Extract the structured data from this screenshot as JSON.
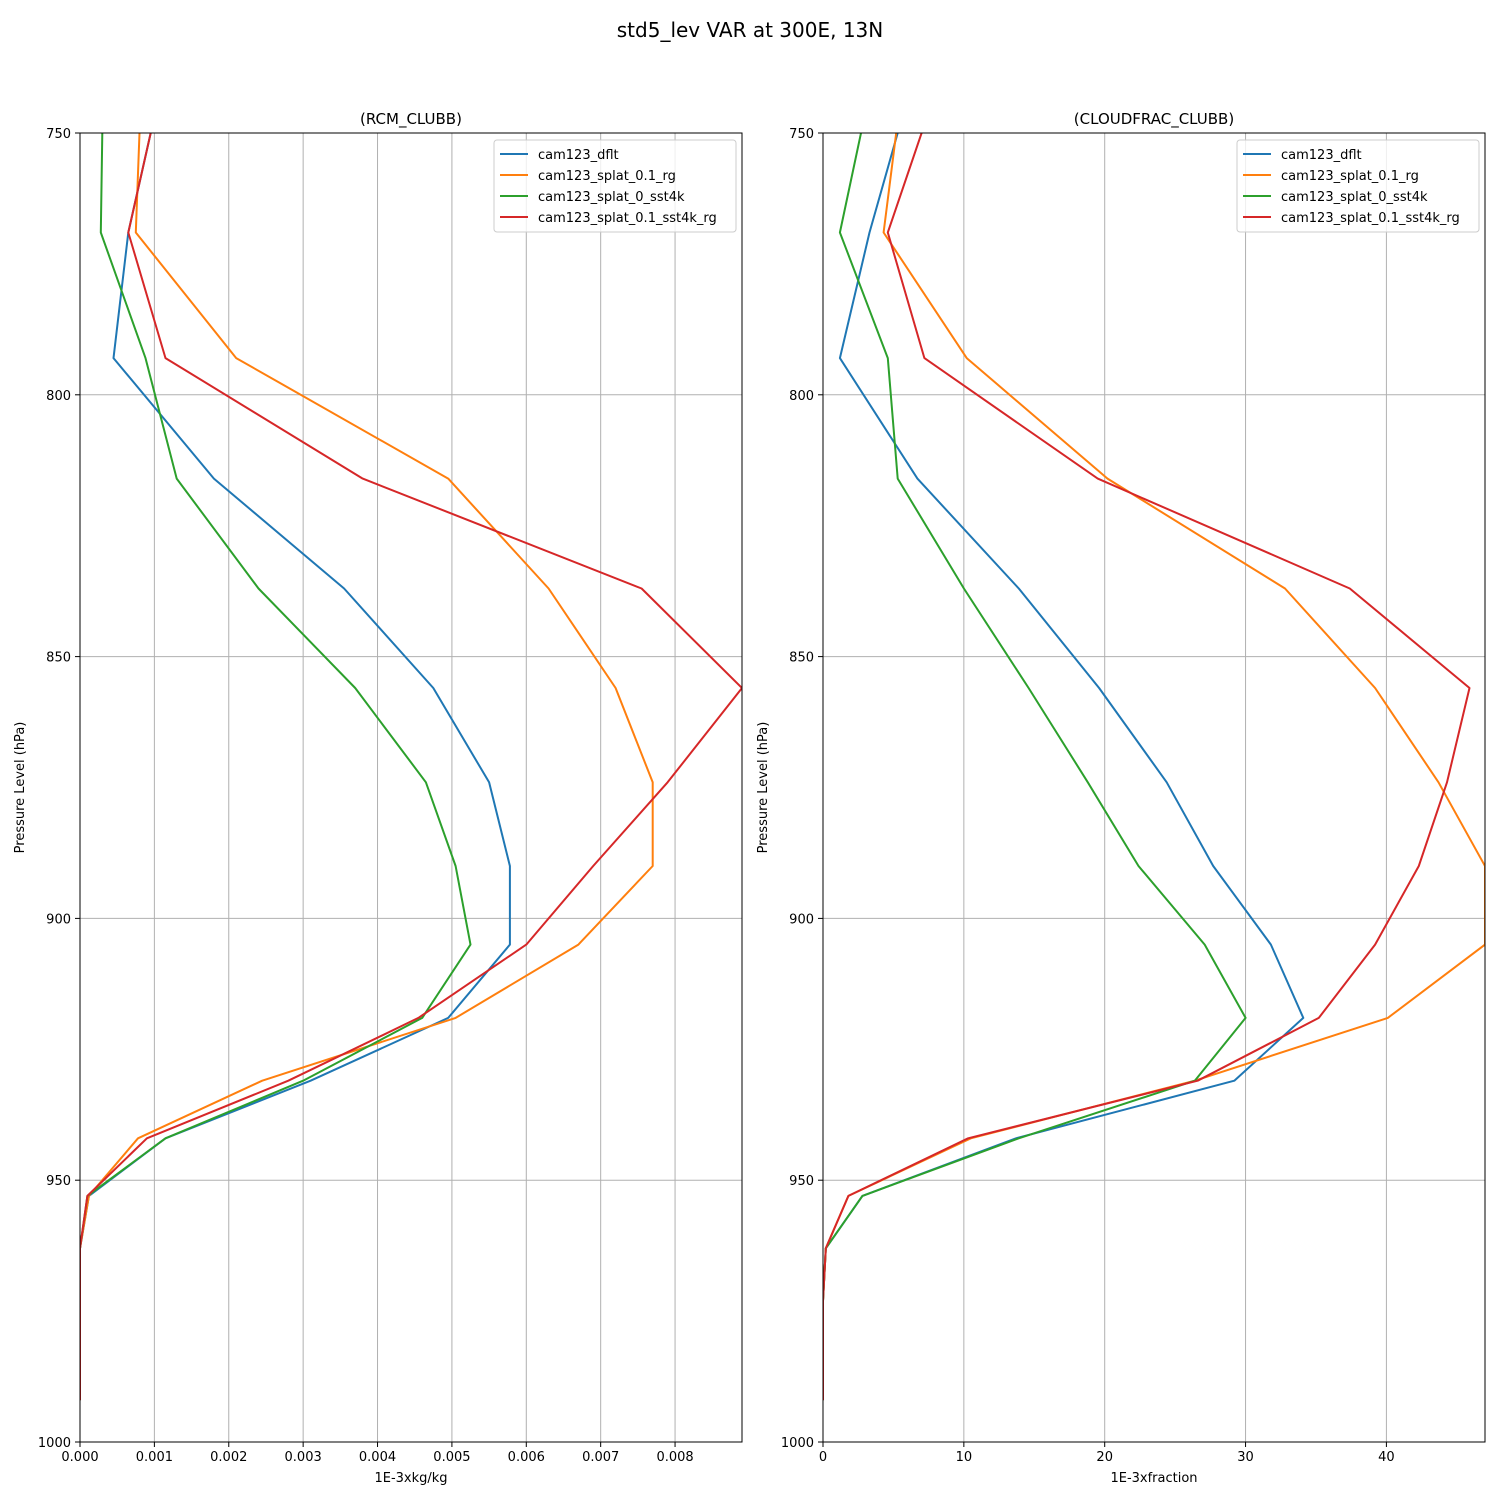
{
  "figure": {
    "title": "std5_lev VAR at 300E, 13N"
  },
  "colors": {
    "cam123_dflt": "#1f77b4",
    "cam123_splat_0.1_rg": "#ff7f0e",
    "cam123_splat_0_sst4k": "#2ca02c",
    "cam123_splat_0.1_sst4k_rg": "#d62728"
  },
  "chart_data": [
    {
      "type": "line",
      "title": "(RCM_CLUBB)",
      "xlabel": "1E-3xkg/kg",
      "ylabel": "Pressure Level (hPa)",
      "xlim": [
        0,
        0.0089
      ],
      "ylim": [
        1000,
        750
      ],
      "y_inverted": true,
      "grid": true,
      "legend_position": "upper right",
      "xticks": [
        0,
        0.001,
        0.002,
        0.003,
        0.004,
        0.005,
        0.006,
        0.007,
        0.008
      ],
      "xtick_labels": [
        "0.000",
        "0.001",
        "0.002",
        "0.003",
        "0.004",
        "0.005",
        "0.006",
        "0.007",
        "0.008"
      ],
      "yticks": [
        750,
        800,
        850,
        900,
        950,
        1000
      ],
      "ytick_labels": [
        "750",
        "800",
        "850",
        "900",
        "950",
        "1000"
      ],
      "levels": [
        750,
        769,
        793,
        816,
        837,
        856,
        874,
        890,
        905,
        919,
        931,
        942,
        953,
        963,
        973,
        983,
        992
      ],
      "series": [
        {
          "name": "cam123_dflt",
          "values": [
            0.00095,
            0.00065,
            0.00045,
            0.0018,
            0.00355,
            0.00475,
            0.0055,
            0.00578,
            0.00578,
            0.00495,
            0.0031,
            0.00115,
            0.00012,
            0.0,
            0.0,
            0.0,
            0.0
          ]
        },
        {
          "name": "cam123_splat_0.1_rg",
          "values": [
            0.0008,
            0.00075,
            0.0021,
            0.00495,
            0.0063,
            0.0072,
            0.0077,
            0.0077,
            0.0067,
            0.00505,
            0.00245,
            0.00078,
            0.00012,
            0.0,
            0.0,
            0.0,
            0.0
          ]
        },
        {
          "name": "cam123_splat_0_sst4k",
          "values": [
            0.0003,
            0.00028,
            0.00088,
            0.0013,
            0.0024,
            0.0037,
            0.00465,
            0.00505,
            0.00525,
            0.0046,
            0.003,
            0.00115,
            0.0001,
            0.0,
            0.0,
            0.0,
            0.0
          ]
        },
        {
          "name": "cam123_splat_0.1_sst4k_rg",
          "values": [
            0.00095,
            0.00065,
            0.00115,
            0.0038,
            0.00755,
            0.0089,
            0.0079,
            0.0069,
            0.006,
            0.00455,
            0.0028,
            0.0009,
            0.0001,
            0.0,
            0.0,
            0.0,
            0.0
          ]
        }
      ]
    },
    {
      "type": "line",
      "title": "(CLOUDFRAC_CLUBB)",
      "xlabel": "1E-3xfraction",
      "ylabel": "Pressure Level (hPa)",
      "xlim": [
        0,
        47
      ],
      "ylim": [
        1000,
        750
      ],
      "y_inverted": true,
      "grid": true,
      "legend_position": "upper right",
      "xticks": [
        0,
        10,
        20,
        30,
        40
      ],
      "xtick_labels": [
        "0",
        "10",
        "20",
        "30",
        "40"
      ],
      "yticks": [
        750,
        800,
        850,
        900,
        950,
        1000
      ],
      "ytick_labels": [
        "750",
        "800",
        "850",
        "900",
        "950",
        "1000"
      ],
      "levels": [
        750,
        769,
        793,
        816,
        837,
        856,
        874,
        890,
        905,
        919,
        931,
        942,
        953,
        963,
        973,
        983,
        992
      ],
      "series": [
        {
          "name": "cam123_dflt",
          "values": [
            5.3,
            3.3,
            1.2,
            6.7,
            13.9,
            19.6,
            24.4,
            27.7,
            31.8,
            34.1,
            29.2,
            13.7,
            2.8,
            0.2,
            0.0,
            0.0,
            0.0
          ]
        },
        {
          "name": "cam123_splat_0.1_rg",
          "values": [
            5.2,
            4.3,
            10.2,
            20.2,
            32.8,
            39.2,
            43.7,
            47.0,
            47.0,
            40.1,
            26.4,
            10.5,
            1.8,
            0.2,
            0.0,
            0.0,
            0.0
          ]
        },
        {
          "name": "cam123_splat_0_sst4k",
          "values": [
            2.7,
            1.2,
            4.6,
            5.3,
            10.0,
            14.6,
            18.8,
            22.4,
            27.1,
            30.0,
            26.4,
            13.9,
            2.8,
            0.2,
            0.0,
            0.0,
            0.0
          ]
        },
        {
          "name": "cam123_splat_0.1_sst4k_rg",
          "values": [
            7.0,
            4.6,
            7.2,
            19.5,
            37.4,
            45.9,
            44.3,
            42.3,
            39.2,
            35.2,
            26.6,
            10.3,
            1.8,
            0.2,
            0.0,
            0.0,
            0.0
          ]
        }
      ]
    }
  ]
}
